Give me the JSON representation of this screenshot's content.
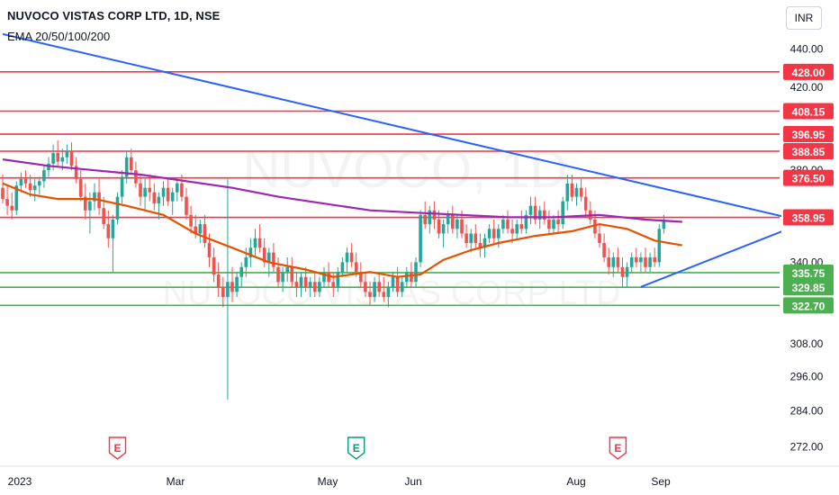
{
  "header": {
    "title": "NUVOCO VISTAS CORP LTD, 1D, NSE",
    "indicator": "EMA 20/50/100/200"
  },
  "currency": "INR",
  "watermark": {
    "symbol": "NUVOCO, 1D",
    "name": "NUVOCO VISTAS CORP LTD"
  },
  "colors": {
    "candle_up": "#26a69a",
    "candle_down": "#ef5350",
    "resistance": "#f23645",
    "support": "#4caf50",
    "trendline": "#2962ff",
    "ema_orange": "#e65100",
    "ema_purple": "#9c27b0",
    "earnings_red": "#f23645",
    "earnings_green": "#089981"
  },
  "chart_data": {
    "type": "candlestick",
    "y_axis": {
      "ticks": [
        "440.00",
        "420.00",
        "380.00",
        "340.00",
        "308.00",
        "296.00",
        "284.00",
        "272.00"
      ],
      "ylim": [
        268,
        446
      ],
      "scale": "log"
    },
    "x_axis": {
      "ticks": [
        "2023",
        "Mar",
        "May",
        "Jun",
        "Aug",
        "Sep"
      ]
    },
    "horizontal_levels": [
      {
        "label": "428.00",
        "value": 428.0,
        "kind": "resistance"
      },
      {
        "label": "408.15",
        "value": 408.15,
        "kind": "resistance"
      },
      {
        "label": "396.95",
        "value": 396.95,
        "kind": "resistance"
      },
      {
        "label": "388.85",
        "value": 388.85,
        "kind": "resistance"
      },
      {
        "label": "376.50",
        "value": 376.5,
        "kind": "resistance"
      },
      {
        "label": "358.95",
        "value": 358.95,
        "kind": "resistance"
      },
      {
        "label": "335.75",
        "value": 335.75,
        "kind": "support"
      },
      {
        "label": "329.85",
        "value": 329.85,
        "kind": "support"
      },
      {
        "label": "322.70",
        "value": 322.7,
        "kind": "support"
      }
    ],
    "trendlines": [
      {
        "name": "descending",
        "points": [
          [
            0,
            448
          ],
          [
            175,
            357
          ]
        ]
      },
      {
        "name": "ascending",
        "points": [
          [
            139,
            330
          ],
          [
            175,
            357
          ]
        ]
      }
    ],
    "earnings_markers": [
      {
        "label": "E",
        "x": 25,
        "result": "miss"
      },
      {
        "label": "E",
        "x": 77,
        "result": "beat"
      },
      {
        "label": "E",
        "x": 134,
        "result": "miss"
      }
    ],
    "ema": [
      {
        "color": "orange",
        "points": [
          [
            0,
            374
          ],
          [
            6,
            369
          ],
          [
            12,
            367
          ],
          [
            20,
            367
          ],
          [
            27,
            364
          ],
          [
            35,
            360
          ],
          [
            42,
            352
          ],
          [
            50,
            346
          ],
          [
            58,
            340
          ],
          [
            66,
            337
          ],
          [
            72,
            334
          ],
          [
            80,
            336
          ],
          [
            86,
            334
          ],
          [
            91,
            335
          ],
          [
            96,
            341
          ],
          [
            102,
            345
          ],
          [
            108,
            348
          ],
          [
            116,
            351
          ],
          [
            124,
            353
          ],
          [
            130,
            356
          ],
          [
            136,
            354
          ],
          [
            142,
            349
          ],
          [
            148,
            347
          ]
        ]
      },
      {
        "color": "purple",
        "points": [
          [
            0,
            385
          ],
          [
            10,
            382
          ],
          [
            20,
            380
          ],
          [
            30,
            378
          ],
          [
            40,
            375
          ],
          [
            50,
            372
          ],
          [
            60,
            368
          ],
          [
            70,
            365
          ],
          [
            80,
            362
          ],
          [
            90,
            361
          ],
          [
            100,
            360
          ],
          [
            110,
            359
          ],
          [
            120,
            359
          ],
          [
            130,
            360
          ],
          [
            140,
            358
          ],
          [
            148,
            357
          ]
        ]
      }
    ],
    "candles": [
      [
        0,
        372,
        378,
        365,
        367
      ],
      [
        1,
        367,
        373,
        360,
        364
      ],
      [
        2,
        364,
        370,
        358,
        362
      ],
      [
        3,
        362,
        375,
        360,
        373
      ],
      [
        4,
        373,
        379,
        370,
        376
      ],
      [
        5,
        376,
        380,
        372,
        374
      ],
      [
        6,
        374,
        378,
        368,
        371
      ],
      [
        7,
        371,
        376,
        366,
        373
      ],
      [
        8,
        373,
        377,
        369,
        375
      ],
      [
        9,
        375,
        382,
        372,
        380
      ],
      [
        10,
        380,
        386,
        377,
        383
      ],
      [
        11,
        383,
        392,
        380,
        388
      ],
      [
        12,
        388,
        394,
        382,
        384
      ],
      [
        13,
        384,
        390,
        380,
        386
      ],
      [
        14,
        386,
        392,
        383,
        389
      ],
      [
        15,
        389,
        393,
        380,
        382
      ],
      [
        16,
        382,
        386,
        374,
        376
      ],
      [
        17,
        376,
        380,
        366,
        368
      ],
      [
        18,
        368,
        374,
        358,
        362
      ],
      [
        19,
        362,
        370,
        352,
        366
      ],
      [
        20,
        366,
        374,
        362,
        370
      ],
      [
        21,
        370,
        376,
        360,
        363
      ],
      [
        22,
        363,
        368,
        354,
        356
      ],
      [
        23,
        356,
        362,
        346,
        350
      ],
      [
        24,
        350,
        360,
        336,
        358
      ],
      [
        25,
        358,
        370,
        356,
        368
      ],
      [
        26,
        368,
        380,
        365,
        377
      ],
      [
        27,
        377,
        389,
        374,
        386
      ],
      [
        28,
        386,
        390,
        378,
        380
      ],
      [
        29,
        380,
        384,
        372,
        374
      ],
      [
        30,
        374,
        378,
        364,
        368
      ],
      [
        31,
        368,
        376,
        362,
        372
      ],
      [
        32,
        372,
        378,
        366,
        370
      ],
      [
        33,
        370,
        374,
        362,
        365
      ],
      [
        34,
        365,
        370,
        358,
        368
      ],
      [
        35,
        368,
        375,
        364,
        372
      ],
      [
        36,
        372,
        376,
        364,
        366
      ],
      [
        37,
        366,
        372,
        360,
        370
      ],
      [
        38,
        370,
        376,
        366,
        374
      ],
      [
        39,
        374,
        378,
        366,
        368
      ],
      [
        40,
        368,
        372,
        358,
        360
      ],
      [
        41,
        360,
        364,
        352,
        355
      ],
      [
        42,
        355,
        360,
        350,
        352
      ],
      [
        43,
        352,
        358,
        348,
        356
      ],
      [
        44,
        356,
        360,
        346,
        348
      ],
      [
        45,
        348,
        352,
        338,
        342
      ],
      [
        46,
        342,
        346,
        332,
        335
      ],
      [
        47,
        335,
        340,
        326,
        330
      ],
      [
        48,
        330,
        334,
        322,
        326
      ],
      [
        49,
        326,
        376,
        288,
        332
      ],
      [
        50,
        332,
        338,
        324,
        328
      ],
      [
        51,
        328,
        336,
        326,
        334
      ],
      [
        52,
        334,
        340,
        330,
        338
      ],
      [
        53,
        338,
        346,
        334,
        342
      ],
      [
        54,
        342,
        350,
        338,
        346
      ],
      [
        55,
        346,
        354,
        342,
        350
      ],
      [
        56,
        350,
        356,
        344,
        346
      ],
      [
        57,
        346,
        350,
        338,
        340
      ],
      [
        58,
        340,
        346,
        334,
        344
      ],
      [
        59,
        344,
        348,
        336,
        338
      ],
      [
        60,
        338,
        342,
        330,
        332
      ],
      [
        61,
        332,
        338,
        328,
        336
      ],
      [
        62,
        336,
        342,
        332,
        338
      ],
      [
        63,
        338,
        342,
        330,
        332
      ],
      [
        64,
        332,
        336,
        326,
        330
      ],
      [
        65,
        330,
        336,
        326,
        334
      ],
      [
        66,
        334,
        338,
        328,
        330
      ],
      [
        67,
        330,
        334,
        326,
        332
      ],
      [
        68,
        332,
        336,
        326,
        328
      ],
      [
        69,
        328,
        334,
        326,
        332
      ],
      [
        70,
        332,
        338,
        330,
        336
      ],
      [
        71,
        336,
        340,
        330,
        332
      ],
      [
        72,
        332,
        336,
        326,
        330
      ],
      [
        73,
        330,
        338,
        328,
        336
      ],
      [
        74,
        336,
        342,
        334,
        340
      ],
      [
        75,
        340,
        346,
        336,
        344
      ],
      [
        76,
        344,
        348,
        338,
        340
      ],
      [
        77,
        340,
        344,
        334,
        336
      ],
      [
        78,
        336,
        340,
        330,
        332
      ],
      [
        79,
        332,
        336,
        326,
        328
      ],
      [
        80,
        328,
        332,
        323,
        326
      ],
      [
        81,
        326,
        334,
        324,
        332
      ],
      [
        82,
        332,
        336,
        326,
        328
      ],
      [
        83,
        328,
        334,
        324,
        326
      ],
      [
        84,
        326,
        332,
        322,
        330
      ],
      [
        85,
        330,
        336,
        328,
        334
      ],
      [
        86,
        334,
        338,
        326,
        328
      ],
      [
        87,
        328,
        334,
        326,
        332
      ],
      [
        88,
        332,
        338,
        330,
        336
      ],
      [
        89,
        336,
        340,
        330,
        332
      ],
      [
        90,
        332,
        342,
        330,
        340
      ],
      [
        91,
        340,
        362,
        338,
        360
      ],
      [
        92,
        360,
        366,
        354,
        356
      ],
      [
        93,
        356,
        364,
        352,
        362
      ],
      [
        94,
        362,
        366,
        354,
        358
      ],
      [
        95,
        358,
        362,
        350,
        352
      ],
      [
        96,
        352,
        358,
        346,
        356
      ],
      [
        97,
        356,
        362,
        352,
        360
      ],
      [
        98,
        360,
        364,
        352,
        354
      ],
      [
        99,
        354,
        360,
        350,
        358
      ],
      [
        100,
        358,
        362,
        350,
        352
      ],
      [
        101,
        352,
        356,
        346,
        348
      ],
      [
        102,
        348,
        354,
        344,
        352
      ],
      [
        103,
        352,
        356,
        346,
        348
      ],
      [
        104,
        348,
        352,
        342,
        346
      ],
      [
        105,
        346,
        352,
        342,
        350
      ],
      [
        106,
        350,
        356,
        348,
        354
      ],
      [
        107,
        354,
        358,
        348,
        350
      ],
      [
        108,
        350,
        356,
        346,
        354
      ],
      [
        109,
        354,
        360,
        352,
        358
      ],
      [
        110,
        358,
        362,
        352,
        354
      ],
      [
        111,
        354,
        358,
        348,
        352
      ],
      [
        112,
        352,
        358,
        350,
        356
      ],
      [
        113,
        356,
        362,
        352,
        354
      ],
      [
        114,
        354,
        362,
        352,
        360
      ],
      [
        115,
        360,
        368,
        356,
        364
      ],
      [
        116,
        364,
        368,
        356,
        358
      ],
      [
        117,
        358,
        364,
        354,
        362
      ],
      [
        118,
        362,
        366,
        356,
        358
      ],
      [
        119,
        358,
        362,
        352,
        354
      ],
      [
        120,
        354,
        360,
        352,
        358
      ],
      [
        121,
        358,
        362,
        352,
        356
      ],
      [
        122,
        356,
        368,
        354,
        366
      ],
      [
        123,
        366,
        378,
        362,
        374
      ],
      [
        124,
        374,
        378,
        366,
        368
      ],
      [
        125,
        368,
        374,
        364,
        372
      ],
      [
        126,
        372,
        376,
        366,
        368
      ],
      [
        127,
        368,
        372,
        360,
        362
      ],
      [
        128,
        362,
        366,
        356,
        358
      ],
      [
        129,
        358,
        362,
        350,
        352
      ],
      [
        130,
        352,
        356,
        346,
        348
      ],
      [
        131,
        348,
        352,
        340,
        342
      ],
      [
        132,
        342,
        346,
        335,
        338
      ],
      [
        133,
        338,
        344,
        334,
        342
      ],
      [
        134,
        342,
        346,
        336,
        338
      ],
      [
        135,
        338,
        342,
        330,
        334
      ],
      [
        136,
        334,
        340,
        330,
        338
      ],
      [
        137,
        338,
        344,
        336,
        342
      ],
      [
        138,
        342,
        346,
        338,
        340
      ],
      [
        139,
        340,
        344,
        336,
        342
      ],
      [
        140,
        342,
        346,
        336,
        338
      ],
      [
        141,
        338,
        344,
        336,
        342
      ],
      [
        142,
        342,
        346,
        338,
        340
      ],
      [
        143,
        340,
        356,
        338,
        354
      ],
      [
        144,
        354,
        360,
        352,
        358
      ]
    ]
  }
}
